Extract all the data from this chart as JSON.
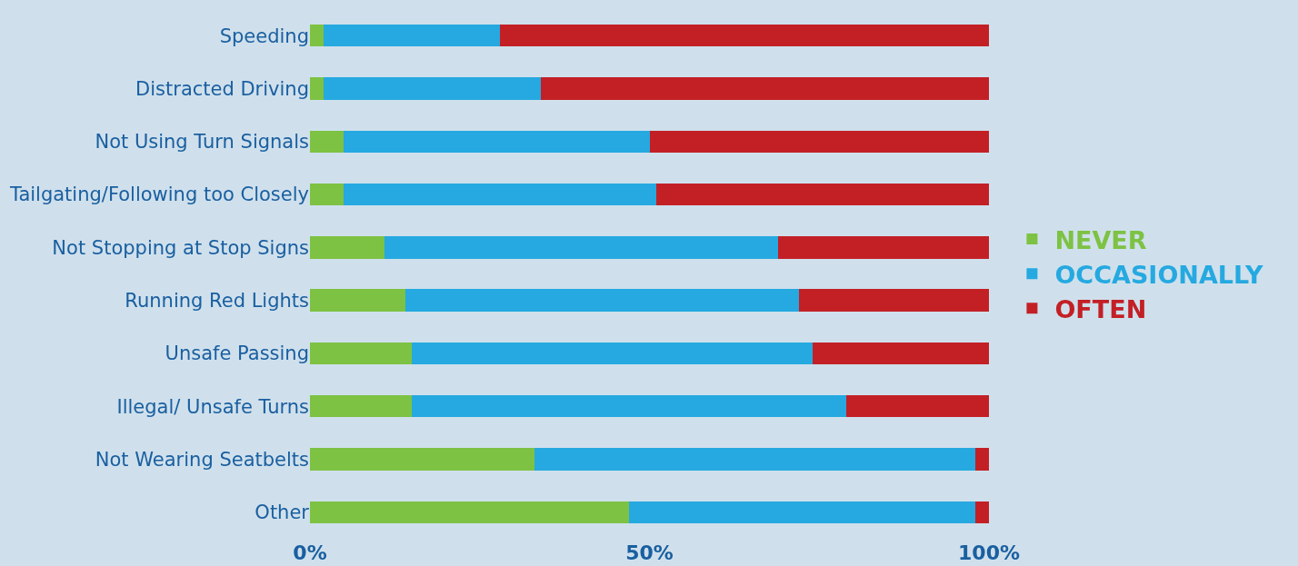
{
  "chart_data": {
    "type": "bar",
    "orientation": "horizontal",
    "stacked": true,
    "categories": [
      "Speeding",
      "Distracted Driving",
      "Not Using Turn Signals",
      "Tailgating/Following too Closely",
      "Not Stopping at Stop Signs",
      "Running Red Lights",
      "Unsafe Passing",
      "Illegal/ Unsafe Turns",
      "Not Wearing Seatbelts",
      "Other"
    ],
    "series": [
      {
        "name": "NEVER",
        "color": "#7dc243",
        "values": [
          2,
          2,
          5,
          5,
          11,
          14,
          15,
          15,
          33,
          47
        ]
      },
      {
        "name": "OCCASIONALLY",
        "color": "#25a9e0",
        "values": [
          26,
          32,
          45,
          46,
          58,
          58,
          59,
          64,
          65,
          51
        ]
      },
      {
        "name": "OFTEN",
        "color": "#c32026",
        "values": [
          72,
          66,
          50,
          49,
          31,
          28,
          26,
          21,
          2,
          2
        ]
      }
    ],
    "xlim": [
      0,
      100
    ],
    "xticks": [
      {
        "value": 0,
        "label": "0%"
      },
      {
        "value": 50,
        "label": "50%"
      },
      {
        "value": 100,
        "label": "100%"
      }
    ],
    "grid": false,
    "legend": "right"
  }
}
